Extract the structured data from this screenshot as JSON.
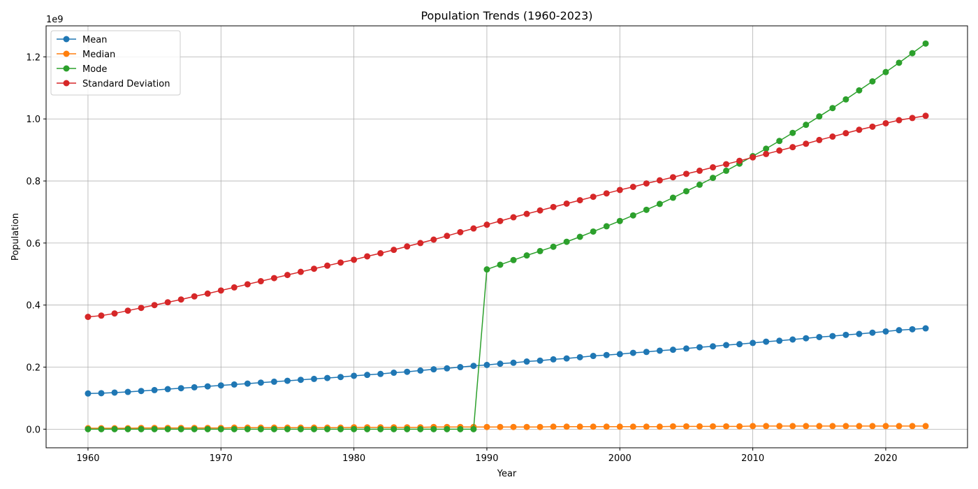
{
  "chart_data": {
    "type": "line",
    "title": "Population Trends (1960-2023)",
    "xlabel": "Year",
    "ylabel": "Population",
    "y_scale_label": "1e9",
    "xlim": [
      1956.85,
      2026.15
    ],
    "ylim": [
      -60000000,
      1300000000
    ],
    "x_ticks": [
      1960,
      1970,
      1980,
      1990,
      2000,
      2010,
      2020
    ],
    "y_ticks": [
      0,
      200000000,
      400000000,
      600000000,
      800000000,
      1000000000,
      1200000000
    ],
    "y_tick_labels": [
      "0.0",
      "0.2",
      "0.4",
      "0.6",
      "0.8",
      "1.0",
      "1.2"
    ],
    "grid": true,
    "legend_position": "top-left",
    "x": [
      1960,
      1961,
      1962,
      1963,
      1964,
      1965,
      1966,
      1967,
      1968,
      1969,
      1970,
      1971,
      1972,
      1973,
      1974,
      1975,
      1976,
      1977,
      1978,
      1979,
      1980,
      1981,
      1982,
      1983,
      1984,
      1985,
      1986,
      1987,
      1988,
      1989,
      1990,
      1991,
      1992,
      1993,
      1994,
      1995,
      1996,
      1997,
      1998,
      1999,
      2000,
      2001,
      2002,
      2003,
      2004,
      2005,
      2006,
      2007,
      2008,
      2009,
      2010,
      2011,
      2012,
      2013,
      2014,
      2015,
      2016,
      2017,
      2018,
      2019,
      2020,
      2021,
      2022,
      2023
    ],
    "series": [
      {
        "name": "Mean",
        "color": "#1f77b4",
        "values": [
          115000000,
          116000000,
          118000000,
          120000000,
          123000000,
          126000000,
          129000000,
          132000000,
          135000000,
          138000000,
          141000000,
          144000000,
          147000000,
          150000000,
          153000000,
          156000000,
          159000000,
          162000000,
          165000000,
          168000000,
          172000000,
          175000000,
          178000000,
          182000000,
          185000000,
          189000000,
          193000000,
          196000000,
          200000000,
          204000000,
          207000000,
          211000000,
          214000000,
          218000000,
          221000000,
          225000000,
          228000000,
          232000000,
          236000000,
          239000000,
          242000000,
          246000000,
          249000000,
          253000000,
          256000000,
          260000000,
          264000000,
          267000000,
          271000000,
          274000000,
          278000000,
          282000000,
          285000000,
          289000000,
          293000000,
          297000000,
          300000000,
          304000000,
          307000000,
          311000000,
          315000000,
          319000000,
          322000000,
          325000000
        ]
      },
      {
        "name": "Median",
        "color": "#ff7f0e",
        "values": [
          3000000,
          3000000,
          3000000,
          3000000,
          4000000,
          4000000,
          4000000,
          4000000,
          4000000,
          4000000,
          4000000,
          5000000,
          5000000,
          5000000,
          5000000,
          5000000,
          5000000,
          5000000,
          5000000,
          5000000,
          6000000,
          6000000,
          6000000,
          6000000,
          6000000,
          6000000,
          7000000,
          7000000,
          7000000,
          7000000,
          7000000,
          7000000,
          7000000,
          7000000,
          7000000,
          8000000,
          8000000,
          8000000,
          8000000,
          8000000,
          8000000,
          8000000,
          8000000,
          8000000,
          9000000,
          9000000,
          9000000,
          9000000,
          9000000,
          9000000,
          10000000,
          10000000,
          10000000,
          10000000,
          10000000,
          10000000,
          10000000,
          10000000,
          10000000,
          10000000,
          10000000,
          10000000,
          10000000,
          10000000
        ]
      },
      {
        "name": "Mode",
        "color": "#2ca02c",
        "values": [
          0,
          0,
          0,
          0,
          0,
          0,
          0,
          0,
          0,
          0,
          0,
          0,
          0,
          0,
          0,
          0,
          0,
          0,
          0,
          0,
          0,
          0,
          0,
          0,
          0,
          0,
          0,
          0,
          0,
          0,
          515000000,
          530000000,
          545000000,
          560000000,
          574000000,
          588000000,
          604000000,
          620000000,
          637000000,
          654000000,
          671000000,
          689000000,
          707000000,
          726000000,
          746000000,
          767000000,
          788000000,
          810000000,
          833000000,
          856000000,
          880000000,
          904000000,
          929000000,
          955000000,
          981000000,
          1008000000,
          1035000000,
          1063000000,
          1092000000,
          1121000000,
          1151000000,
          1181000000,
          1212000000,
          1243000000
        ]
      },
      {
        "name": "Standard Deviation",
        "color": "#d62728",
        "values": [
          362000000,
          366000000,
          373000000,
          382000000,
          391000000,
          400000000,
          409000000,
          418000000,
          428000000,
          437000000,
          447000000,
          457000000,
          467000000,
          477000000,
          487000000,
          497000000,
          507000000,
          517000000,
          527000000,
          537000000,
          546000000,
          557000000,
          567000000,
          578000000,
          589000000,
          600000000,
          611000000,
          623000000,
          635000000,
          647000000,
          659000000,
          671000000,
          683000000,
          694000000,
          705000000,
          716000000,
          727000000,
          738000000,
          749000000,
          760000000,
          771000000,
          781000000,
          792000000,
          802000000,
          812000000,
          823000000,
          833000000,
          844000000,
          854000000,
          865000000,
          876000000,
          887000000,
          898000000,
          909000000,
          920000000,
          932000000,
          943000000,
          954000000,
          965000000,
          975000000,
          986000000,
          996000000,
          1003000000,
          1010000000
        ]
      }
    ]
  }
}
